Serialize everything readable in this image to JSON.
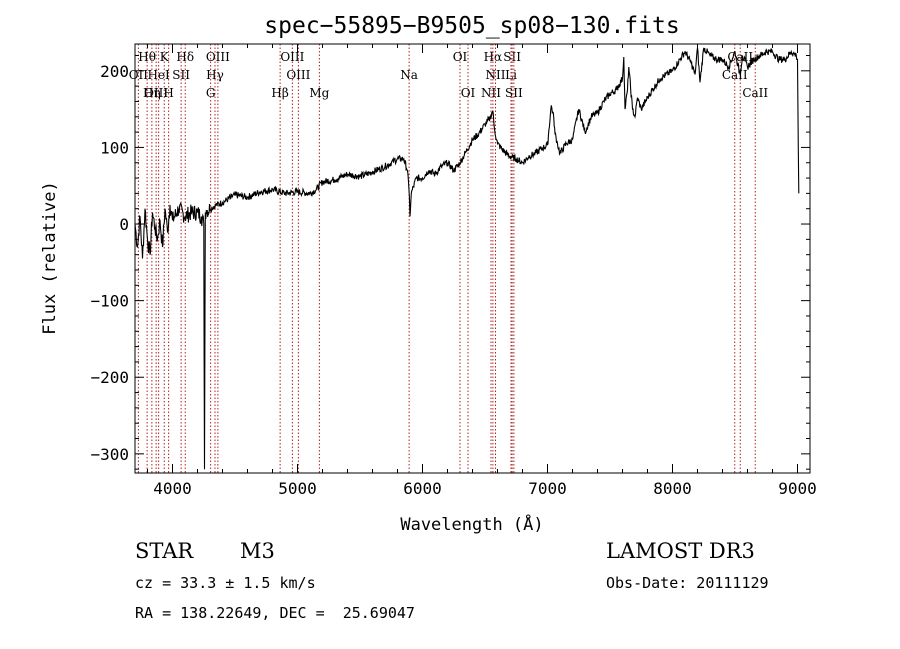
{
  "chart_data": {
    "type": "line",
    "title": "spec−55895−B9505_sp08−130.fits",
    "xlabel": "Wavelength (Å)",
    "ylabel": "Flux (relative)",
    "xlim": [
      3700,
      9100
    ],
    "ylim": [
      -325,
      235
    ],
    "x_ticks": [
      4000,
      5000,
      6000,
      7000,
      8000,
      9000
    ],
    "y_ticks": [
      -300,
      -200,
      -100,
      0,
      100,
      200
    ],
    "x_tick_labels": [
      "4000",
      "5000",
      "6000",
      "7000",
      "8000",
      "9000"
    ],
    "y_tick_labels": [
      "−300",
      "−200",
      "−100",
      "0",
      "100",
      "200"
    ],
    "grid": false,
    "series": [
      {
        "name": "spectrum",
        "x": [
          3700,
          3720,
          3740,
          3760,
          3780,
          3800,
          3820,
          3840,
          3860,
          3880,
          3900,
          3920,
          3940,
          3960,
          3980,
          4000,
          4050,
          4100,
          4150,
          4200,
          4230,
          4250,
          4256,
          4262,
          4270,
          4300,
          4350,
          4400,
          4500,
          4600,
          4700,
          4800,
          4900,
          5000,
          5100,
          5150,
          5200,
          5300,
          5400,
          5500,
          5600,
          5700,
          5800,
          5850,
          5880,
          5895,
          5900,
          5910,
          5950,
          6000,
          6050,
          6100,
          6150,
          6200,
          6250,
          6300,
          6350,
          6400,
          6450,
          6500,
          6540,
          6562,
          6575,
          6600,
          6650,
          6700,
          6750,
          6800,
          6850,
          6900,
          6950,
          7000,
          7030,
          7050,
          7060,
          7080,
          7100,
          7150,
          7200,
          7250,
          7300,
          7350,
          7400,
          7450,
          7500,
          7550,
          7600,
          7610,
          7620,
          7640,
          7650,
          7680,
          7700,
          7720,
          7750,
          7800,
          7900,
          8000,
          8100,
          8150,
          8180,
          8200,
          8220,
          8250,
          8300,
          8350,
          8400,
          8450,
          8500,
          8540,
          8560,
          8600,
          8650,
          8700,
          8750,
          8800,
          8850,
          8900,
          8950,
          8990,
          9000,
          9010
        ],
        "y": [
          0,
          -30,
          10,
          -45,
          20,
          -20,
          -40,
          15,
          -5,
          -20,
          5,
          -30,
          20,
          -10,
          25,
          5,
          20,
          10,
          15,
          15,
          10,
          0,
          -320,
          15,
          18,
          20,
          25,
          28,
          38,
          35,
          42,
          45,
          40,
          42,
          40,
          45,
          55,
          58,
          65,
          62,
          68,
          75,
          85,
          85,
          70,
          35,
          10,
          40,
          60,
          60,
          70,
          65,
          75,
          80,
          70,
          80,
          95,
          110,
          118,
          130,
          138,
          148,
          125,
          105,
          95,
          88,
          85,
          80,
          88,
          92,
          98,
          103,
          155,
          138,
          118,
          105,
          92,
          105,
          110,
          150,
          120,
          140,
          145,
          160,
          170,
          175,
          190,
          218,
          150,
          175,
          205,
          150,
          140,
          165,
          150,
          165,
          190,
          200,
          225,
          210,
          195,
          230,
          185,
          230,
          220,
          215,
          215,
          205,
          225,
          195,
          220,
          205,
          215,
          220,
          225,
          225,
          215,
          215,
          225,
          220,
          215,
          40
        ]
      }
    ],
    "spectral_lines": [
      {
        "label": "Hθ",
        "x": 3797,
        "row": 0
      },
      {
        "label": "K",
        "x": 3934,
        "row": 0
      },
      {
        "label": "Hδ",
        "x": 4102,
        "row": 0
      },
      {
        "label": "OIII",
        "x": 4363,
        "row": 0
      },
      {
        "label": "OIII",
        "x": 4959,
        "row": 0
      },
      {
        "label": "OI",
        "x": 6300,
        "row": 0
      },
      {
        "label": "Hα",
        "x": 6563,
        "row": 0
      },
      {
        "label": "SII",
        "x": 6717,
        "row": 0
      },
      {
        "label": "CaII",
        "x": 8542,
        "row": 0
      },
      {
        "label": "OII",
        "x": 3727,
        "row": 1
      },
      {
        "label": "HeI",
        "x": 3889,
        "row": 1
      },
      {
        "label": "SII",
        "x": 4069,
        "row": 1
      },
      {
        "label": "Hγ",
        "x": 4340,
        "row": 1
      },
      {
        "label": "OIII",
        "x": 5007,
        "row": 1
      },
      {
        "label": "Na",
        "x": 5893,
        "row": 1
      },
      {
        "label": "NII",
        "x": 6584,
        "row": 1
      },
      {
        "label": "Li",
        "x": 6708,
        "row": 1
      },
      {
        "label": "CaII",
        "x": 8498,
        "row": 1
      },
      {
        "label": "OIII",
        "x": 3869,
        "row": 2
      },
      {
        "label": "Hη",
        "x": 3835,
        "row": 2
      },
      {
        "label": "H",
        "x": 3969,
        "row": 2
      },
      {
        "label": "G",
        "x": 4305,
        "row": 2
      },
      {
        "label": "Hβ",
        "x": 4861,
        "row": 2
      },
      {
        "label": "Mg",
        "x": 5175,
        "row": 2
      },
      {
        "label": "OI",
        "x": 6364,
        "row": 2
      },
      {
        "label": "NII",
        "x": 6548,
        "row": 2
      },
      {
        "label": "SII",
        "x": 6731,
        "row": 2
      },
      {
        "label": "CaII",
        "x": 8662,
        "row": 2
      }
    ],
    "line_color": "#000000",
    "marker_color": "#b22222"
  },
  "info": {
    "object_class": "STAR",
    "subclass": "M3",
    "survey": "LAMOST DR3",
    "cz": "cz = 33.3 ± 1.5 km/s",
    "obs_date": "Obs-Date: 20111129",
    "coords": "RA = 138.22649, DEC =  25.69047"
  }
}
